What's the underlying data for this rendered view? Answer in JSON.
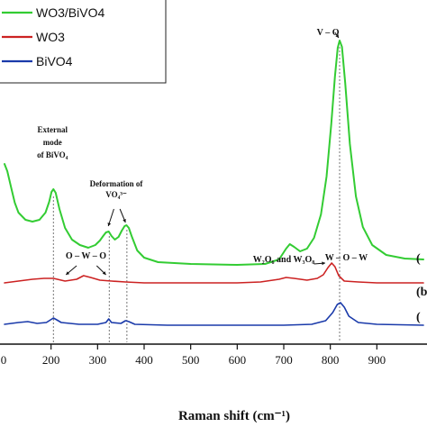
{
  "chart_data": {
    "type": "line",
    "title": "",
    "xlabel": "Raman shift (cm⁻¹)",
    "ylabel": "",
    "xlim": [
      100,
      1000
    ],
    "xticks": [
      200,
      300,
      400,
      500,
      600,
      700,
      800,
      900
    ],
    "legend_position": "top-left",
    "series": [
      {
        "name": "WO3/BiVO4",
        "color": "#33cc33",
        "edge_label": "(",
        "points": [
          [
            100,
            182
          ],
          [
            106,
            190
          ],
          [
            115,
            210
          ],
          [
            122,
            225
          ],
          [
            130,
            236
          ],
          [
            145,
            244
          ],
          [
            160,
            246
          ],
          [
            175,
            244
          ],
          [
            188,
            236
          ],
          [
            196,
            224
          ],
          [
            201,
            213
          ],
          [
            205,
            210
          ],
          [
            210,
            214
          ],
          [
            218,
            232
          ],
          [
            230,
            253
          ],
          [
            245,
            266
          ],
          [
            262,
            272
          ],
          [
            280,
            275
          ],
          [
            295,
            272
          ],
          [
            305,
            267
          ],
          [
            312,
            262
          ],
          [
            318,
            258
          ],
          [
            324,
            257
          ],
          [
            330,
            262
          ],
          [
            337,
            266
          ],
          [
            345,
            263
          ],
          [
            352,
            256
          ],
          [
            358,
            251
          ],
          [
            362,
            250
          ],
          [
            367,
            253
          ],
          [
            373,
            262
          ],
          [
            385,
            278
          ],
          [
            400,
            286
          ],
          [
            430,
            291
          ],
          [
            500,
            293
          ],
          [
            600,
            294
          ],
          [
            660,
            293
          ],
          [
            690,
            288
          ],
          [
            705,
            276
          ],
          [
            713,
            271
          ],
          [
            722,
            274
          ],
          [
            735,
            279
          ],
          [
            750,
            276
          ],
          [
            765,
            264
          ],
          [
            780,
            238
          ],
          [
            792,
            196
          ],
          [
            802,
            138
          ],
          [
            810,
            85
          ],
          [
            816,
            53
          ],
          [
            820,
            45
          ],
          [
            825,
            52
          ],
          [
            832,
            92
          ],
          [
            842,
            160
          ],
          [
            855,
            218
          ],
          [
            870,
            252
          ],
          [
            890,
            272
          ],
          [
            920,
            283
          ],
          [
            960,
            287
          ],
          [
            1000,
            288
          ]
        ]
      },
      {
        "name": "WO3",
        "color": "#cc2222",
        "edge_label": "(b",
        "points": [
          [
            100,
            314
          ],
          [
            130,
            312
          ],
          [
            160,
            310
          ],
          [
            185,
            309
          ],
          [
            205,
            309
          ],
          [
            230,
            312
          ],
          [
            255,
            310
          ],
          [
            270,
            306
          ],
          [
            285,
            308
          ],
          [
            305,
            311
          ],
          [
            330,
            312
          ],
          [
            360,
            313
          ],
          [
            400,
            314
          ],
          [
            500,
            314
          ],
          [
            600,
            314
          ],
          [
            650,
            313
          ],
          [
            690,
            310
          ],
          [
            705,
            308
          ],
          [
            722,
            309
          ],
          [
            750,
            311
          ],
          [
            772,
            309
          ],
          [
            785,
            305
          ],
          [
            795,
            297
          ],
          [
            803,
            292
          ],
          [
            810,
            296
          ],
          [
            818,
            306
          ],
          [
            830,
            312
          ],
          [
            860,
            313
          ],
          [
            900,
            314
          ],
          [
            1000,
            314
          ]
        ]
      },
      {
        "name": "BiVO4",
        "color": "#1a3aaa",
        "edge_label": "(",
        "points": [
          [
            100,
            360
          ],
          [
            130,
            358
          ],
          [
            150,
            357
          ],
          [
            170,
            359
          ],
          [
            190,
            358
          ],
          [
            205,
            353
          ],
          [
            212,
            355
          ],
          [
            222,
            358
          ],
          [
            260,
            360
          ],
          [
            300,
            360
          ],
          [
            318,
            358
          ],
          [
            324,
            354
          ],
          [
            330,
            358
          ],
          [
            350,
            359
          ],
          [
            360,
            356
          ],
          [
            367,
            357
          ],
          [
            380,
            360
          ],
          [
            450,
            361
          ],
          [
            600,
            361
          ],
          [
            700,
            361
          ],
          [
            760,
            360
          ],
          [
            790,
            356
          ],
          [
            805,
            347
          ],
          [
            815,
            338
          ],
          [
            822,
            336
          ],
          [
            830,
            341
          ],
          [
            840,
            351
          ],
          [
            860,
            358
          ],
          [
            900,
            360
          ],
          [
            1000,
            361
          ]
        ]
      }
    ],
    "annotations": [
      {
        "lines": [
          "External",
          "mode",
          "of BiVO₄"
        ],
        "x": 205
      },
      {
        "lines": [
          "Deformation of",
          "VO₄³⁻"
        ],
        "x": 340
      },
      {
        "lines": [
          "O – W – O"
        ],
        "x": 275
      },
      {
        "lines": [
          "W₂O₆ and W₃O₈"
        ],
        "x": 700
      },
      {
        "lines": [
          "W – O – W"
        ],
        "x": 815
      },
      {
        "lines": [
          "V – O"
        ],
        "x": 790
      }
    ],
    "guide_lines_x": [
      205,
      325,
      363,
      820
    ]
  }
}
